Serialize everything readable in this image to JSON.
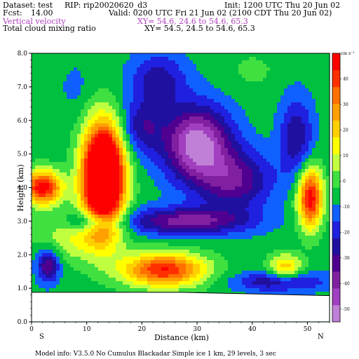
{
  "header": {
    "dataset": "Dataset: test",
    "rip": "RIP: rip20020620_d3",
    "init": "Init: 1200 UTC Thu 20 Jun 02",
    "fcst_label": "Fcst:",
    "fcst_value": "14.00",
    "valid": "Valid: 0200 UTC Fri 21 Jun 02 (2100 CDT Thu 20 Jun 02)",
    "field1": "Vertical velocity",
    "xy1": "XY=  54.6, 24.6 to  54.6, 65.3",
    "field2": "Total cloud mixing ratio",
    "xy2": "XY=  54.5, 24.5 to  54.6, 65.3"
  },
  "footer": {
    "model_info": "Model info: V3.5.0    No Cumulus    Blackadar    Simple ice      1 km,   29 levels,      3 sec"
  },
  "colors": {
    "scale": [
      "#c080d8",
      "#a040c0",
      "#8020a0",
      "#500090",
      "#2010a0",
      "#2020e0",
      "#1060ff",
      "#00c040",
      "#40e040",
      "#c0ff40",
      "#ffff00",
      "#ffd000",
      "#ffa000",
      "#ff7000",
      "#ff3000",
      "#ff0000"
    ],
    "ground": "#ffffff"
  },
  "chart_data": {
    "type": "heatmap",
    "xlabel": "Distance (km)",
    "ylabel": "Height (km)",
    "xlim": [
      0,
      54
    ],
    "ylim": [
      0,
      8
    ],
    "x_ticks": [
      0,
      10,
      20,
      30,
      40,
      50
    ],
    "y_ticks": [
      "0.0",
      "1.0",
      "2.0",
      "3.0",
      "4.0",
      "5.0",
      "6.0",
      "7.0",
      "8.0"
    ],
    "x_end_labels": {
      "left": "S",
      "right": "N"
    },
    "colorbar": {
      "unit": "cm s⁻¹",
      "ticks": [
        40,
        30,
        20,
        10,
        0,
        -10,
        -20,
        -30,
        -40,
        -50
      ],
      "min": -55,
      "max": 50
    },
    "terrain_height_km": {
      "x": [
        0,
        27,
        54
      ],
      "z": [
        0.88,
        0.88,
        0.78
      ]
    },
    "features": [
      {
        "x": 13,
        "z": 4.3,
        "sx": 3.6,
        "sz": 1.5,
        "amp": 105
      },
      {
        "x": 2,
        "z": 4.0,
        "sx": 3.5,
        "sz": 0.5,
        "amp": 55
      },
      {
        "x": 50.5,
        "z": 3.7,
        "sx": 2.2,
        "sz": 0.9,
        "amp": 55
      },
      {
        "x": 24,
        "z": 1.55,
        "sx": 7.5,
        "sz": 0.5,
        "amp": 50
      },
      {
        "x": 46,
        "z": 1.6,
        "sx": 3.0,
        "sz": 0.4,
        "amp": 28
      },
      {
        "x": 8,
        "z": 2.5,
        "sx": 7.0,
        "sz": 0.7,
        "amp": 16
      },
      {
        "x": 30,
        "z": 5.3,
        "sx": 6.0,
        "sz": 1.1,
        "amp": -48
      },
      {
        "x": 37,
        "z": 4.2,
        "sx": 6.5,
        "sz": 0.9,
        "amp": -28
      },
      {
        "x": 28,
        "z": 3.0,
        "sx": 11.0,
        "sz": 0.4,
        "amp": -32
      },
      {
        "x": 20,
        "z": 5.8,
        "sx": 4.0,
        "sz": 0.8,
        "amp": -20
      },
      {
        "x": 48,
        "z": 5.5,
        "sx": 3.0,
        "sz": 1.2,
        "amp": -22
      },
      {
        "x": 3,
        "z": 1.7,
        "sx": 2.0,
        "sz": 0.5,
        "amp": -30
      },
      {
        "x": 11,
        "z": 3.0,
        "sx": 4.0,
        "sz": 0.3,
        "amp": -26
      },
      {
        "x": 45,
        "z": 1.2,
        "sx": 8.0,
        "sz": 0.3,
        "amp": -24
      },
      {
        "x": 23,
        "z": 7.2,
        "sx": 5.0,
        "sz": 0.8,
        "amp": -20
      },
      {
        "x": 8,
        "z": 7.0,
        "sx": 3.0,
        "sz": 0.8,
        "amp": -5
      },
      {
        "x": 40,
        "z": 7.5,
        "sx": 5.0,
        "sz": 0.6,
        "amp": 5
      }
    ],
    "base_value": -6
  }
}
